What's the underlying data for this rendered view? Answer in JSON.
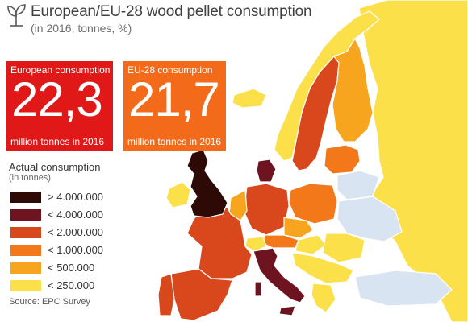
{
  "title": "European/EU-28 wood pellet consumption",
  "subtitle": "(in 2016, tonnes, %)",
  "icon": "leaf-sprout-icon",
  "stats": [
    {
      "label": "European consumption",
      "value": "22,3",
      "caption": "million tonnes in 2016",
      "color": "#e01818"
    },
    {
      "label": "EU-28 consumption",
      "value": "21,7",
      "caption": "million tonnes in 2016",
      "color": "#f26a1a"
    }
  ],
  "legend": {
    "title": "Actual consumption",
    "subtitle": "(in tonnes)",
    "items": [
      {
        "label": "> 4.000.000",
        "color": "#2d0a06"
      },
      {
        "label": "< 4.000.000",
        "color": "#6e1320"
      },
      {
        "label": "< 2.000.000",
        "color": "#d9471c"
      },
      {
        "label": "< 1.000.000",
        "color": "#f2781a"
      },
      {
        "label": "< 500.000",
        "color": "#f7a51e"
      },
      {
        "label": "< 250.000",
        "color": "#fbe04a"
      }
    ]
  },
  "no_data_color": "#d9e4f2",
  "source": "Source: EPC Survey"
}
